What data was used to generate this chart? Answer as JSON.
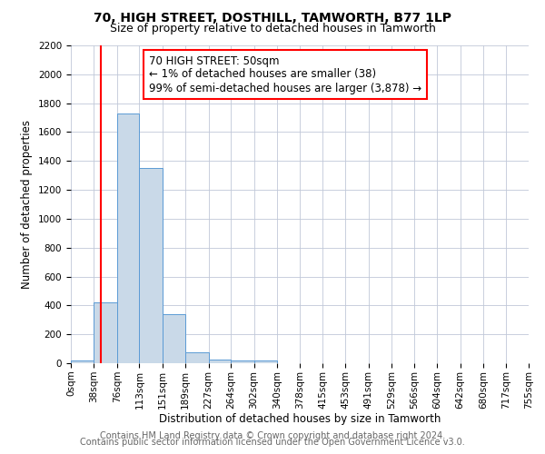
{
  "title": "70, HIGH STREET, DOSTHILL, TAMWORTH, B77 1LP",
  "subtitle": "Size of property relative to detached houses in Tamworth",
  "xlabel": "Distribution of detached houses by size in Tamworth",
  "ylabel": "Number of detached properties",
  "bin_edges": [
    0,
    38,
    76,
    113,
    151,
    189,
    227,
    264,
    302,
    340,
    378,
    415,
    453,
    491,
    529,
    566,
    604,
    642,
    680,
    717,
    755
  ],
  "bin_counts": [
    20,
    420,
    1730,
    1350,
    340,
    75,
    25,
    20,
    20,
    0,
    0,
    0,
    0,
    0,
    0,
    0,
    0,
    0,
    0,
    0
  ],
  "bar_color": "#c9d9e8",
  "bar_edge_color": "#5b9bd5",
  "vline_x": 50,
  "vline_color": "red",
  "vline_linewidth": 1.5,
  "annotation_line1": "70 HIGH STREET: 50sqm",
  "annotation_line2": "← 1% of detached houses are smaller (38)",
  "annotation_line3": "99% of semi-detached houses are larger (3,878) →",
  "ylim": [
    0,
    2200
  ],
  "yticks": [
    0,
    200,
    400,
    600,
    800,
    1000,
    1200,
    1400,
    1600,
    1800,
    2000,
    2200
  ],
  "xtick_labels": [
    "0sqm",
    "38sqm",
    "76sqm",
    "113sqm",
    "151sqm",
    "189sqm",
    "227sqm",
    "264sqm",
    "302sqm",
    "340sqm",
    "378sqm",
    "415sqm",
    "453sqm",
    "491sqm",
    "529sqm",
    "566sqm",
    "604sqm",
    "642sqm",
    "680sqm",
    "717sqm",
    "755sqm"
  ],
  "footer_line1": "Contains HM Land Registry data © Crown copyright and database right 2024.",
  "footer_line2": "Contains public sector information licensed under the Open Government Licence v3.0.",
  "background_color": "#ffffff",
  "grid_color": "#c0c8d8",
  "title_fontsize": 10,
  "subtitle_fontsize": 9,
  "axis_label_fontsize": 8.5,
  "tick_fontsize": 7.5,
  "annotation_fontsize": 8.5,
  "footer_fontsize": 7
}
